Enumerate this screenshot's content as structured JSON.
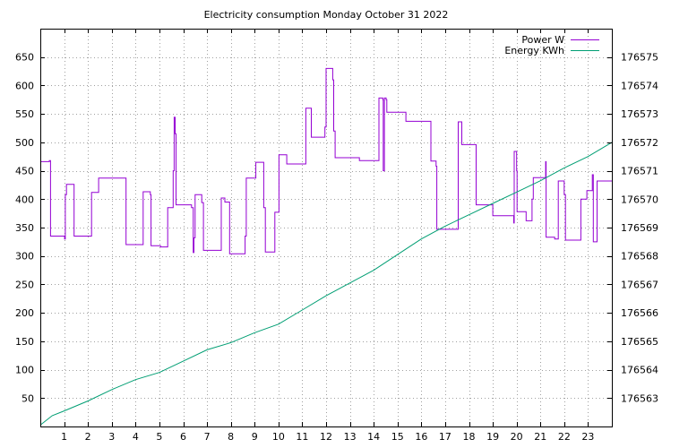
{
  "chart_data": {
    "type": "line",
    "title": "Electricity consumption Monday October 31 2022",
    "xlabel": "",
    "ylabel": "",
    "y2label": "",
    "x_ticks": [
      1,
      2,
      3,
      4,
      5,
      6,
      7,
      8,
      9,
      10,
      11,
      12,
      13,
      14,
      15,
      16,
      17,
      18,
      19,
      20,
      21,
      22,
      23
    ],
    "xlim": [
      0,
      24
    ],
    "ylim": [
      0,
      700
    ],
    "y_ticks": [
      50,
      100,
      150,
      200,
      250,
      300,
      350,
      400,
      450,
      500,
      550,
      600,
      650
    ],
    "y2lim": [
      176562,
      176576
    ],
    "y2_ticks": [
      176563,
      176564,
      176565,
      176566,
      176567,
      176568,
      176569,
      176570,
      176571,
      176572,
      176573,
      176574,
      176575
    ],
    "grid": true,
    "legend_position": "top-right",
    "series": [
      {
        "name": "Power W",
        "axis": "left",
        "color": "#9400d3",
        "step": true,
        "points": [
          [
            0,
            466
          ],
          [
            0.38,
            468
          ],
          [
            0.43,
            335
          ],
          [
            1.0,
            335
          ],
          [
            1.02,
            330
          ],
          [
            1.05,
            408
          ],
          [
            1.1,
            426
          ],
          [
            1.38,
            426
          ],
          [
            1.42,
            335
          ],
          [
            2.1,
            335
          ],
          [
            2.15,
            412
          ],
          [
            2.42,
            412
          ],
          [
            2.45,
            437
          ],
          [
            3.55,
            437
          ],
          [
            3.6,
            320
          ],
          [
            4.3,
            320
          ],
          [
            4.32,
            413
          ],
          [
            4.55,
            413
          ],
          [
            4.62,
            408
          ],
          [
            4.65,
            318
          ],
          [
            5.0,
            318
          ],
          [
            5.05,
            316
          ],
          [
            5.3,
            316
          ],
          [
            5.35,
            385
          ],
          [
            5.55,
            385
          ],
          [
            5.58,
            450
          ],
          [
            5.62,
            544
          ],
          [
            5.66,
            515
          ],
          [
            5.7,
            390
          ],
          [
            6.3,
            390
          ],
          [
            6.35,
            385
          ],
          [
            6.42,
            306
          ],
          [
            6.45,
            332
          ],
          [
            6.5,
            408
          ],
          [
            6.75,
            408
          ],
          [
            6.78,
            394
          ],
          [
            6.85,
            310
          ],
          [
            7.55,
            310
          ],
          [
            7.6,
            402
          ],
          [
            7.7,
            402
          ],
          [
            7.75,
            395
          ],
          [
            7.9,
            395
          ],
          [
            7.95,
            304
          ],
          [
            8.55,
            304
          ],
          [
            8.6,
            335
          ],
          [
            8.65,
            437
          ],
          [
            9.0,
            437
          ],
          [
            9.05,
            465
          ],
          [
            9.35,
            465
          ],
          [
            9.38,
            385
          ],
          [
            9.45,
            307
          ],
          [
            9.8,
            307
          ],
          [
            9.85,
            377
          ],
          [
            10.0,
            377
          ],
          [
            10.02,
            478
          ],
          [
            10.3,
            478
          ],
          [
            10.35,
            462
          ],
          [
            11.1,
            462
          ],
          [
            11.15,
            560
          ],
          [
            11.35,
            560
          ],
          [
            11.38,
            509
          ],
          [
            11.9,
            509
          ],
          [
            11.95,
            527
          ],
          [
            12.0,
            630
          ],
          [
            12.25,
            630
          ],
          [
            12.28,
            610
          ],
          [
            12.32,
            520
          ],
          [
            12.38,
            473
          ],
          [
            13.35,
            473
          ],
          [
            13.4,
            468
          ],
          [
            14.15,
            468
          ],
          [
            14.22,
            578
          ],
          [
            14.35,
            578
          ],
          [
            14.38,
            575
          ],
          [
            14.4,
            450
          ],
          [
            14.45,
            578
          ],
          [
            14.52,
            575
          ],
          [
            14.55,
            553
          ],
          [
            15.3,
            553
          ],
          [
            15.35,
            537
          ],
          [
            16.35,
            537
          ],
          [
            16.4,
            467
          ],
          [
            16.6,
            467
          ],
          [
            16.62,
            458
          ],
          [
            16.65,
            347
          ],
          [
            17.5,
            347
          ],
          [
            17.55,
            536
          ],
          [
            17.65,
            536
          ],
          [
            17.7,
            496
          ],
          [
            18.2,
            496
          ],
          [
            18.3,
            390
          ],
          [
            18.95,
            390
          ],
          [
            19.0,
            371
          ],
          [
            19.85,
            371
          ],
          [
            19.88,
            358
          ],
          [
            19.9,
            484
          ],
          [
            19.95,
            484
          ],
          [
            20.0,
            450
          ],
          [
            20.02,
            378
          ],
          [
            20.35,
            378
          ],
          [
            20.4,
            362
          ],
          [
            20.62,
            362
          ],
          [
            20.65,
            400
          ],
          [
            20.7,
            438
          ],
          [
            21.2,
            438
          ],
          [
            21.22,
            466
          ],
          [
            21.24,
            333
          ],
          [
            21.55,
            333
          ],
          [
            21.6,
            330
          ],
          [
            21.7,
            330
          ],
          [
            21.75,
            432
          ],
          [
            21.95,
            432
          ],
          [
            22.0,
            408
          ],
          [
            22.05,
            328
          ],
          [
            22.65,
            328
          ],
          [
            22.7,
            400
          ],
          [
            22.9,
            400
          ],
          [
            22.95,
            415
          ],
          [
            23.15,
            415
          ],
          [
            23.18,
            443
          ],
          [
            23.22,
            325
          ],
          [
            23.32,
            325
          ],
          [
            23.38,
            432
          ],
          [
            24.0,
            432
          ]
        ]
      },
      {
        "name": "Energy KWh",
        "axis": "right",
        "color": "#009e73",
        "step": false,
        "points": [
          [
            0,
            176562.05
          ],
          [
            0.5,
            176562.38
          ],
          [
            1,
            176562.55
          ],
          [
            2,
            176562.9
          ],
          [
            3,
            176563.3
          ],
          [
            4,
            176563.65
          ],
          [
            5,
            176563.9
          ],
          [
            6,
            176564.3
          ],
          [
            7,
            176564.7
          ],
          [
            8,
            176564.95
          ],
          [
            9,
            176565.3
          ],
          [
            10,
            176565.6
          ],
          [
            11,
            176566.1
          ],
          [
            12,
            176566.6
          ],
          [
            13,
            176567.05
          ],
          [
            14,
            176567.5
          ],
          [
            15,
            176568.05
          ],
          [
            16,
            176568.6
          ],
          [
            17,
            176569.05
          ],
          [
            18,
            176569.45
          ],
          [
            19,
            176569.85
          ],
          [
            20,
            176570.25
          ],
          [
            21,
            176570.65
          ],
          [
            22,
            176571.1
          ],
          [
            23,
            176571.5
          ],
          [
            24,
            176572.0
          ]
        ]
      }
    ]
  }
}
